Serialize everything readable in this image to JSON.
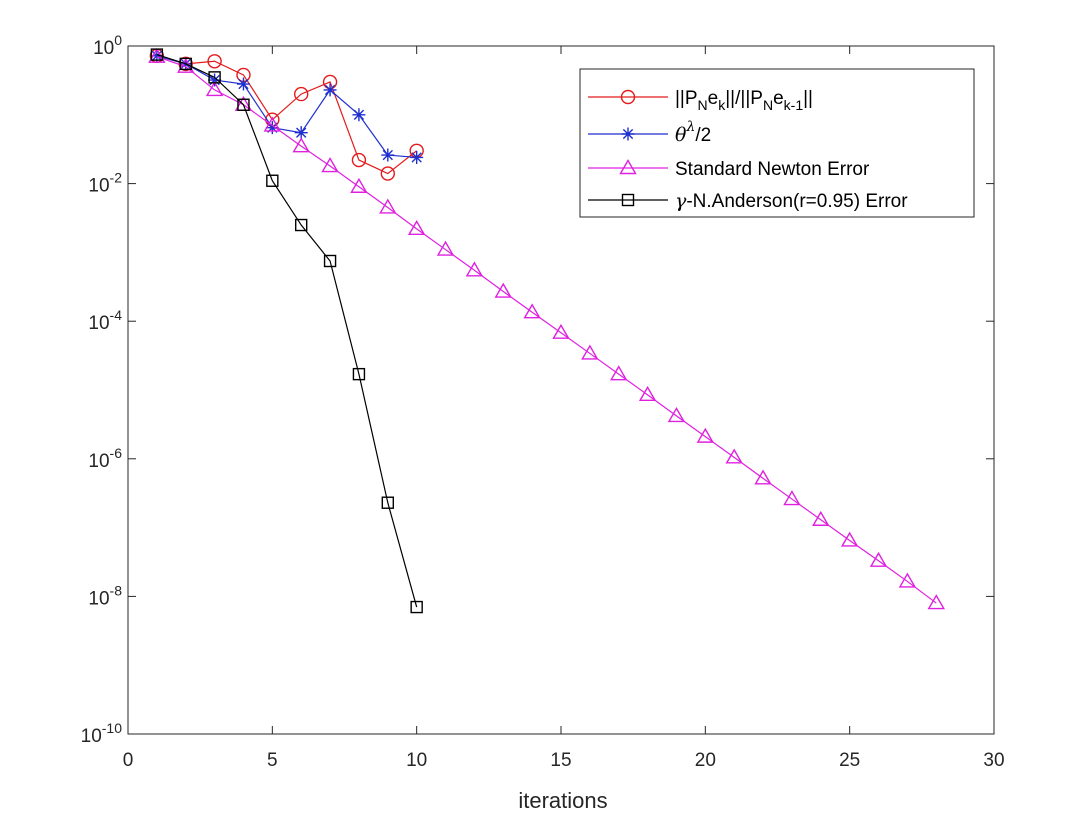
{
  "chart_data": {
    "type": "line",
    "title": "",
    "xlabel": "iterations",
    "ylabel": "",
    "xlim": [
      0,
      30
    ],
    "ylim": [
      1e-10,
      1
    ],
    "yscale": "log",
    "grid": false,
    "legend_position": "top-right",
    "x_ticks": [
      "0",
      "5",
      "10",
      "15",
      "20",
      "25",
      "30"
    ],
    "y_ticks": [
      {
        "base": "10",
        "exp": "0"
      },
      {
        "base": "10",
        "exp": "-2"
      },
      {
        "base": "10",
        "exp": "-4"
      },
      {
        "base": "10",
        "exp": "-6"
      },
      {
        "base": "10",
        "exp": "-8"
      },
      {
        "base": "10",
        "exp": "-10"
      }
    ],
    "series": [
      {
        "legend_parts": [
          {
            "t": "||P"
          },
          {
            "t": "N",
            "sub": true
          },
          {
            "t": "e"
          },
          {
            "t": "k",
            "sub": true
          },
          {
            "t": "||/||P"
          },
          {
            "t": "N",
            "sub": true
          },
          {
            "t": "e"
          },
          {
            "t": "k-1",
            "sub": true
          },
          {
            "t": "||"
          }
        ],
        "color": "#e31a1c",
        "marker": "circle",
        "x": [
          1,
          2,
          3,
          4,
          5,
          6,
          7,
          8,
          9,
          10
        ],
        "y": [
          0.72,
          0.55,
          0.6,
          0.38,
          0.085,
          0.2,
          0.3,
          0.022,
          0.014,
          0.03
        ]
      },
      {
        "legend_parts": [
          {
            "t": "θ",
            "serif": true
          },
          {
            "t": "λ",
            "sup": true,
            "serif": true
          },
          {
            "t": "/2"
          }
        ],
        "color": "#1f2fcf",
        "marker": "asterisk",
        "x": [
          1,
          2,
          3,
          4,
          5,
          6,
          7,
          8,
          9,
          10
        ],
        "y": [
          0.72,
          0.55,
          0.32,
          0.28,
          0.065,
          0.055,
          0.23,
          0.1,
          0.026,
          0.024
        ]
      },
      {
        "legend_parts": [
          {
            "t": "Standard Newton Error"
          }
        ],
        "color": "#e020e0",
        "marker": "triangle",
        "x": [
          1,
          2,
          3,
          4,
          5,
          6,
          7,
          8,
          9,
          10,
          11,
          12,
          13,
          14,
          15,
          16,
          17,
          18,
          19,
          20,
          21,
          22,
          23,
          24,
          25,
          26,
          27,
          28
        ],
        "y": [
          0.7,
          0.5,
          0.23,
          0.14,
          0.07,
          0.035,
          0.018,
          0.009,
          0.0045,
          0.0022,
          0.0011,
          0.00055,
          0.00027,
          0.000135,
          6.8e-05,
          3.4e-05,
          1.7e-05,
          8.5e-06,
          4.2e-06,
          2.1e-06,
          1.05e-06,
          5.2e-07,
          2.6e-07,
          1.3e-07,
          6.5e-08,
          3.3e-08,
          1.65e-08,
          8e-09
        ]
      },
      {
        "legend_parts": [
          {
            "t": "γ",
            "serif": true
          },
          {
            "t": "-N.Anderson(r=0.95) Error"
          }
        ],
        "color": "#000000",
        "marker": "square",
        "x": [
          1,
          2,
          3,
          4,
          5,
          6,
          7,
          8,
          9,
          10
        ],
        "y": [
          0.75,
          0.55,
          0.35,
          0.14,
          0.011,
          0.0025,
          0.00075,
          1.7e-05,
          2.3e-07,
          7e-09
        ]
      }
    ]
  }
}
